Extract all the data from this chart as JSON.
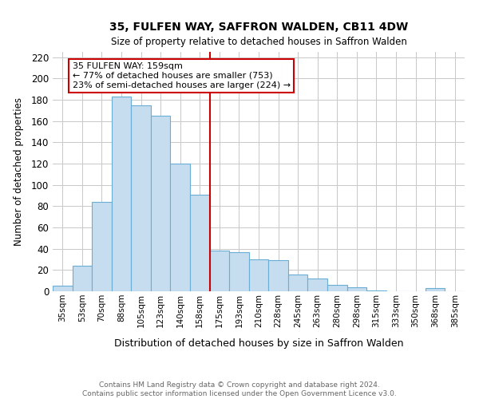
{
  "title": "35, FULFEN WAY, SAFFRON WALDEN, CB11 4DW",
  "subtitle": "Size of property relative to detached houses in Saffron Walden",
  "xlabel": "Distribution of detached houses by size in Saffron Walden",
  "ylabel": "Number of detached properties",
  "bar_labels": [
    "35sqm",
    "53sqm",
    "70sqm",
    "88sqm",
    "105sqm",
    "123sqm",
    "140sqm",
    "158sqm",
    "175sqm",
    "193sqm",
    "210sqm",
    "228sqm",
    "245sqm",
    "263sqm",
    "280sqm",
    "298sqm",
    "315sqm",
    "333sqm",
    "350sqm",
    "368sqm",
    "385sqm"
  ],
  "bar_values": [
    5,
    24,
    84,
    183,
    175,
    165,
    120,
    91,
    38,
    37,
    30,
    29,
    16,
    12,
    6,
    4,
    1,
    0,
    0,
    3,
    0
  ],
  "bar_color": "#c5ddef",
  "bar_edge_color": "#6aadd5",
  "vline_x": 7.5,
  "vline_color": "#cc0000",
  "annotation_text": "35 FULFEN WAY: 159sqm\n← 77% of detached houses are smaller (753)\n23% of semi-detached houses are larger (224) →",
  "annotation_box_edge": "#cc0000",
  "ylim": [
    0,
    225
  ],
  "yticks": [
    0,
    20,
    40,
    60,
    80,
    100,
    120,
    140,
    160,
    180,
    200,
    220
  ],
  "footer": "Contains HM Land Registry data © Crown copyright and database right 2024.\nContains public sector information licensed under the Open Government Licence v3.0.",
  "background_color": "#ffffff",
  "grid_color": "#c8c8c8"
}
